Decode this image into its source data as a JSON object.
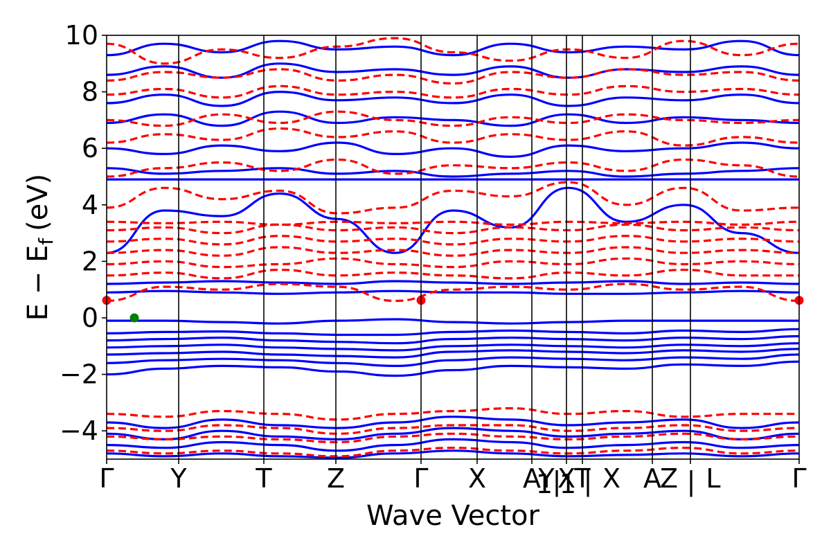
{
  "chart_data": {
    "type": "line",
    "title": "",
    "xlabel": "Wave Vector",
    "ylabel": "E − E",
    "ylabel_sub": "f",
    "ylabel_unit": "(eV)",
    "ylim": [
      -5,
      10
    ],
    "yticks": [
      -4,
      -2,
      0,
      2,
      4,
      6,
      8,
      10
    ],
    "ytick_labels": [
      "−4",
      "−2",
      "0",
      "2",
      "4",
      "6",
      "8",
      "10"
    ],
    "kpath": [
      {
        "label": "Γ",
        "x": 0.0
      },
      {
        "label": "Y",
        "x": 0.104
      },
      {
        "label": "T",
        "x": 0.227
      },
      {
        "label": "Z",
        "x": 0.331
      },
      {
        "label": "Γ",
        "x": 0.454
      },
      {
        "label": "X",
        "x": 0.535
      },
      {
        "label": "A",
        "x": 0.614
      },
      {
        "label": "1",
        "x": 0.632,
        "sub": true
      },
      {
        "label": "Y",
        "x": 0.635
      },
      {
        "label": "|",
        "x": 0.65
      },
      {
        "label": "X",
        "x": 0.664
      },
      {
        "label": "1",
        "x": 0.666,
        "sub": true
      },
      {
        "label": "|",
        "x": 0.695
      },
      {
        "label": "T",
        "x": 0.687
      },
      {
        "label": "X",
        "x": 0.729
      },
      {
        "label": "A",
        "x": 0.788
      },
      {
        "label": "Z",
        "x": 0.812
      },
      {
        "label": "|",
        "x": 0.844
      },
      {
        "label": "L",
        "x": 0.876
      },
      {
        "label": "Γ",
        "x": 1.0
      }
    ],
    "segment_boundaries": [
      0.104,
      0.227,
      0.331,
      0.454,
      0.535,
      0.614,
      0.664,
      0.687,
      0.788,
      0.843
    ],
    "series": [
      {
        "style": "solid",
        "color": "#0000ff",
        "kind": "spin-up bands",
        "bands": [
          [
            -2.0,
            -1.8,
            -1.7,
            -1.75,
            -1.9,
            -2.05,
            -1.85,
            -1.7,
            -1.75,
            -1.8,
            -1.65,
            -1.7,
            -1.55
          ],
          [
            -1.6,
            -1.5,
            -1.45,
            -1.5,
            -1.6,
            -1.7,
            -1.5,
            -1.4,
            -1.45,
            -1.5,
            -1.4,
            -1.45,
            -1.3
          ],
          [
            -1.3,
            -1.25,
            -1.2,
            -1.3,
            -1.35,
            -1.4,
            -1.2,
            -1.15,
            -1.2,
            -1.25,
            -1.15,
            -1.2,
            -1.1
          ],
          [
            -1.05,
            -1.0,
            -0.95,
            -1.05,
            -1.1,
            -1.15,
            -1.0,
            -0.95,
            -1.0,
            -1.05,
            -0.95,
            -1.0,
            -0.9
          ],
          [
            -0.8,
            -0.75,
            -0.7,
            -0.8,
            -0.85,
            -0.9,
            -0.75,
            -0.7,
            -0.75,
            -0.8,
            -0.7,
            -0.75,
            -0.65
          ],
          [
            -0.55,
            -0.5,
            -0.48,
            -0.55,
            -0.6,
            -0.6,
            -0.5,
            -0.45,
            -0.5,
            -0.55,
            -0.45,
            -0.5,
            -0.4
          ],
          [
            -0.1,
            -0.1,
            -0.15,
            -0.2,
            -0.1,
            -0.05,
            -0.15,
            -0.2,
            -0.15,
            -0.1,
            -0.1,
            -0.1,
            -0.1
          ],
          [
            0.9,
            0.95,
            0.9,
            0.85,
            0.9,
            0.95,
            0.9,
            0.9,
            0.85,
            0.85,
            0.9,
            0.95,
            0.9
          ],
          [
            1.2,
            1.25,
            1.3,
            1.25,
            1.2,
            1.3,
            1.25,
            1.2,
            1.25,
            1.3,
            1.2,
            1.25,
            1.2
          ],
          [
            2.3,
            3.8,
            3.6,
            4.4,
            3.5,
            2.3,
            3.8,
            3.2,
            4.6,
            3.4,
            4.0,
            3.0,
            2.3
          ],
          [
            4.9,
            4.9,
            4.9,
            4.9,
            4.9,
            4.9,
            4.9,
            4.9,
            4.9,
            4.9,
            4.9,
            4.9,
            4.9
          ],
          [
            5.3,
            5.1,
            5.2,
            5.3,
            5.1,
            5.2,
            5.0,
            5.1,
            5.2,
            5.0,
            5.1,
            5.2,
            5.3
          ],
          [
            6.0,
            5.8,
            6.1,
            5.9,
            6.2,
            5.8,
            6.0,
            5.7,
            6.1,
            5.9,
            6.0,
            6.2,
            6.0
          ],
          [
            6.9,
            7.2,
            6.8,
            7.3,
            6.9,
            7.1,
            7.0,
            6.8,
            7.2,
            6.9,
            7.1,
            7.0,
            6.9
          ],
          [
            7.6,
            7.9,
            7.5,
            8.0,
            7.7,
            7.8,
            7.6,
            7.9,
            7.5,
            7.8,
            7.7,
            7.9,
            7.6
          ],
          [
            8.6,
            8.9,
            8.5,
            9.0,
            8.7,
            8.8,
            8.6,
            8.9,
            8.5,
            8.8,
            8.7,
            8.9,
            8.6
          ],
          [
            9.3,
            9.7,
            9.4,
            9.8,
            9.5,
            9.6,
            9.3,
            9.7,
            9.4,
            9.6,
            9.5,
            9.8,
            9.3
          ],
          [
            -3.7,
            -3.9,
            -3.6,
            -3.8,
            -3.9,
            -3.7,
            -3.5,
            -3.6,
            -3.8,
            -3.7,
            -3.6,
            -3.9,
            -3.7
          ],
          [
            -4.1,
            -4.3,
            -4.0,
            -4.2,
            -4.3,
            -4.1,
            -3.9,
            -4.0,
            -4.2,
            -4.1,
            -4.0,
            -4.3,
            -4.1
          ],
          [
            -4.5,
            -4.6,
            -4.4,
            -4.5,
            -4.7,
            -4.5,
            -4.3,
            -4.4,
            -4.6,
            -4.5,
            -4.4,
            -4.6,
            -4.5
          ],
          [
            -4.8,
            -4.9,
            -4.8,
            -4.9,
            -4.95,
            -4.8,
            -4.7,
            -4.8,
            -4.9,
            -4.85,
            -4.8,
            -4.9,
            -4.8
          ]
        ]
      },
      {
        "style": "dashed",
        "color": "#ff0000",
        "kind": "spin-down bands",
        "bands": [
          [
            0.6,
            1.1,
            1.0,
            1.2,
            1.1,
            0.6,
            1.0,
            1.1,
            1.0,
            1.2,
            1.0,
            1.1,
            0.6
          ],
          [
            1.5,
            1.6,
            1.4,
            1.7,
            1.5,
            1.6,
            1.5,
            1.4,
            1.6,
            1.5,
            1.7,
            1.5,
            1.5
          ],
          [
            1.9,
            2.0,
            1.8,
            1.9,
            2.1,
            1.9,
            1.8,
            2.0,
            1.9,
            2.1,
            1.9,
            2.0,
            1.9
          ],
          [
            2.3,
            2.4,
            2.2,
            2.5,
            2.3,
            2.4,
            2.2,
            2.4,
            2.3,
            2.5,
            2.3,
            2.4,
            2.3
          ],
          [
            2.7,
            2.8,
            2.6,
            2.9,
            2.7,
            2.8,
            2.6,
            2.8,
            2.7,
            2.9,
            2.7,
            2.8,
            2.7
          ],
          [
            3.1,
            3.2,
            3.0,
            3.3,
            3.1,
            3.2,
            3.0,
            3.2,
            3.1,
            3.3,
            3.1,
            3.2,
            3.1
          ],
          [
            3.4,
            3.35,
            3.4,
            3.3,
            3.4,
            3.35,
            3.4,
            3.3,
            3.4,
            3.35,
            3.4,
            3.3,
            3.4
          ],
          [
            3.9,
            4.6,
            4.2,
            4.5,
            3.7,
            3.9,
            4.5,
            4.3,
            4.8,
            4.0,
            4.6,
            3.8,
            3.9
          ],
          [
            5.0,
            5.3,
            5.5,
            5.2,
            5.6,
            5.1,
            5.4,
            5.3,
            5.5,
            5.2,
            5.6,
            5.4,
            5.0
          ],
          [
            6.2,
            6.5,
            6.3,
            6.7,
            6.4,
            6.6,
            6.2,
            6.5,
            6.3,
            6.6,
            6.1,
            6.4,
            6.2
          ],
          [
            7.0,
            6.8,
            7.2,
            6.9,
            7.3,
            7.0,
            6.8,
            7.1,
            6.9,
            7.2,
            7.0,
            6.9,
            7.0
          ],
          [
            7.9,
            8.1,
            7.8,
            8.2,
            7.9,
            8.0,
            7.8,
            8.1,
            7.9,
            8.2,
            8.0,
            8.1,
            7.9
          ],
          [
            8.4,
            8.7,
            8.5,
            8.8,
            8.4,
            8.6,
            8.3,
            8.7,
            8.5,
            8.8,
            8.6,
            8.7,
            8.4
          ],
          [
            9.7,
            9.0,
            9.5,
            9.2,
            9.6,
            9.9,
            9.4,
            9.1,
            9.5,
            9.2,
            9.8,
            9.3,
            9.7
          ],
          [
            -3.4,
            -3.5,
            -3.3,
            -3.4,
            -3.6,
            -3.4,
            -3.3,
            -3.2,
            -3.4,
            -3.3,
            -3.5,
            -3.4,
            -3.4
          ],
          [
            -3.9,
            -4.0,
            -3.8,
            -3.9,
            -4.1,
            -3.9,
            -3.8,
            -3.8,
            -4.0,
            -3.9,
            -3.8,
            -4.0,
            -3.9
          ],
          [
            -4.2,
            -4.3,
            -4.2,
            -4.3,
            -4.4,
            -4.2,
            -4.1,
            -4.2,
            -4.3,
            -4.2,
            -4.1,
            -4.3,
            -4.2
          ],
          [
            -4.7,
            -4.8,
            -4.7,
            -4.8,
            -4.9,
            -4.7,
            -4.6,
            -4.7,
            -4.8,
            -4.7,
            -4.6,
            -4.8,
            -4.7
          ]
        ]
      }
    ],
    "markers": [
      {
        "x": 0.0,
        "y": 0.62,
        "color": "#ff0000"
      },
      {
        "x": 0.454,
        "y": 0.62,
        "color": "#ff0000"
      },
      {
        "x": 1.0,
        "y": 0.62,
        "color": "#ff0000"
      },
      {
        "x": 0.04,
        "y": 0.0,
        "color": "#008000"
      }
    ],
    "grid": false,
    "legend": "none"
  }
}
